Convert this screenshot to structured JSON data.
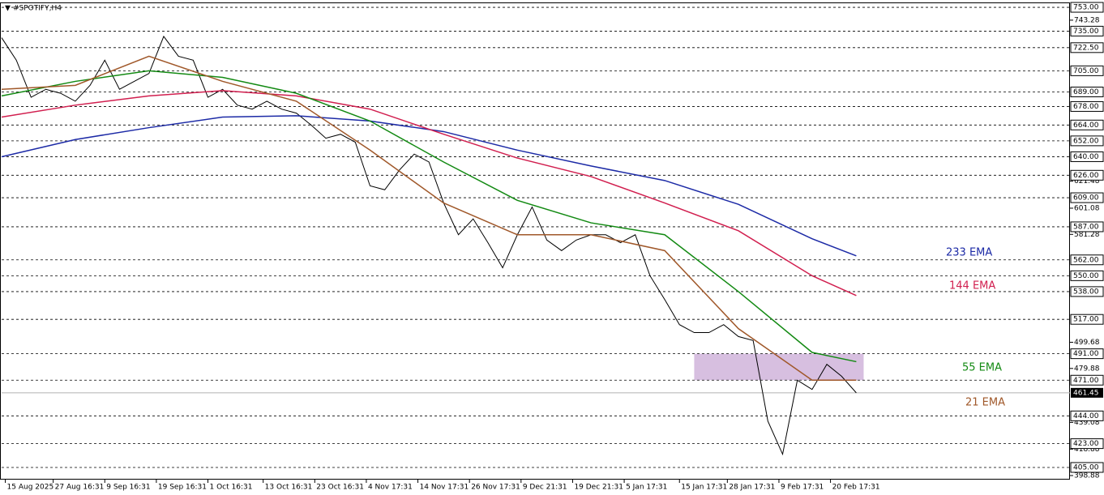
{
  "chart_data": {
    "type": "line",
    "title": "#SPOTIFY,H4",
    "xlim": [
      0,
      290
    ],
    "xticks": [
      {
        "value": 1,
        "label": "15 Aug 2025"
      },
      {
        "value": 14,
        "label": "27 Aug 16:31"
      },
      {
        "value": 28,
        "label": "9 Sep 16:31"
      },
      {
        "value": 42,
        "label": "19 Sep 16:31"
      },
      {
        "value": 56,
        "label": "1 Oct 16:31"
      },
      {
        "value": 71,
        "label": "13 Oct 16:31"
      },
      {
        "value": 85,
        "label": "23 Oct 16:31"
      },
      {
        "value": 99,
        "label": "4 Nov 17:31"
      },
      {
        "value": 113,
        "label": "14 Nov 17:31"
      },
      {
        "value": 127,
        "label": "26 Nov 17:31"
      },
      {
        "value": 141,
        "label": "9 Dec 21:31"
      },
      {
        "value": 155,
        "label": "19 Dec 21:31"
      },
      {
        "value": 169,
        "label": "5 Jan 17:31"
      },
      {
        "value": 184,
        "label": "15 Jan 17:31"
      },
      {
        "value": 197,
        "label": "28 Jan 17:31"
      },
      {
        "value": 211,
        "label": "9 Feb 17:31"
      },
      {
        "value": 225,
        "label": "20 Feb 17:31"
      }
    ],
    "ylim": [
      395.8,
      756.7
    ],
    "yticks": [
      743.28,
      621.48,
      601.08,
      581.28,
      499.68,
      479.88,
      439.08,
      418.88,
      398.88
    ],
    "levels": [
      753,
      735,
      722.5,
      705,
      689,
      678,
      664,
      652,
      640,
      626,
      609,
      587,
      562,
      550,
      538,
      517,
      491,
      471,
      444,
      423,
      405
    ],
    "level_labels": [
      "753.00",
      "735.00",
      "722.50",
      "705.00",
      "689.00",
      "678.00",
      "664.00",
      "652.00",
      "640.00",
      "626.00",
      "609.00",
      "587.00",
      "562.00",
      "550.00",
      "538.00",
      "517.00",
      "491.00",
      "471.00",
      "444.00",
      "423.00",
      "405.00"
    ],
    "current_price": 461.45,
    "zone_y": [
      471,
      491
    ],
    "zone_x": [
      188,
      234
    ],
    "series": [
      {
        "name": "#SPOTIFY",
        "color": "#000000",
        "x": [
          0,
          4,
          8,
          12,
          16,
          20,
          24,
          28,
          32,
          36,
          40,
          44,
          48,
          52,
          56,
          60,
          64,
          68,
          72,
          76,
          80,
          84,
          88,
          92,
          96,
          100,
          104,
          108,
          112,
          116,
          120,
          124,
          128,
          132,
          136,
          140,
          144,
          148,
          152,
          156,
          160,
          164,
          168,
          172,
          176,
          180,
          184,
          188,
          192,
          196,
          200,
          204,
          208,
          212,
          216,
          220,
          224,
          228,
          232
        ],
        "values": [
          730,
          713,
          685,
          691,
          688,
          682,
          694,
          713,
          691,
          697,
          703,
          731,
          716,
          713,
          685,
          691,
          679,
          676,
          682,
          676,
          673,
          664,
          654,
          657,
          651,
          618,
          615,
          630,
          642,
          636,
          605,
          581,
          593,
          575,
          556,
          581,
          602,
          577,
          569,
          577,
          581,
          581,
          575,
          581,
          550,
          532,
          513,
          507,
          507,
          513,
          504,
          501,
          440,
          415,
          471,
          464,
          483,
          474,
          461.45
        ]
      },
      {
        "name": "233 EMA",
        "color": "#1c2aa6",
        "x": [
          0,
          20,
          40,
          60,
          80,
          100,
          120,
          140,
          160,
          180,
          200,
          220,
          232
        ],
        "values": [
          640,
          653,
          662,
          670,
          671,
          667,
          659,
          645,
          633,
          622,
          604,
          578,
          565
        ]
      },
      {
        "name": "144 EMA",
        "color": "#d11f4f",
        "x": [
          0,
          20,
          40,
          60,
          80,
          100,
          120,
          140,
          160,
          180,
          200,
          220,
          232
        ],
        "values": [
          670,
          679,
          686,
          690,
          686,
          676,
          657,
          639,
          625,
          605,
          584,
          550,
          535
        ]
      },
      {
        "name": "55 EMA",
        "color": "#138a13",
        "x": [
          0,
          20,
          40,
          60,
          80,
          100,
          120,
          140,
          160,
          180,
          200,
          220,
          232
        ],
        "values": [
          686,
          697,
          705,
          700,
          688,
          667,
          636,
          607,
          590,
          581,
          538,
          492,
          485
        ]
      },
      {
        "name": "21 EMA",
        "color": "#a0582a",
        "x": [
          0,
          20,
          40,
          60,
          80,
          100,
          120,
          140,
          160,
          180,
          200,
          220,
          232
        ],
        "values": [
          691,
          694,
          716,
          697,
          682,
          645,
          605,
          581,
          581,
          569,
          510,
          471,
          471
        ]
      }
    ]
  }
}
